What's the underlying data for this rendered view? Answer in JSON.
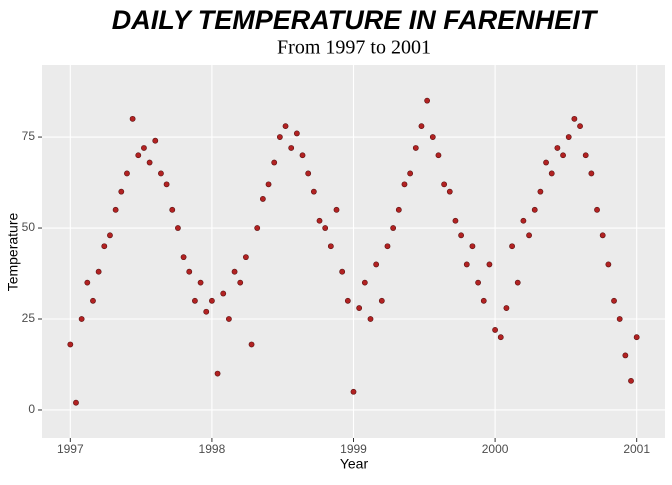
{
  "chart_data": {
    "type": "scatter",
    "title": "DAILY TEMPERATURE IN FARENHEIT",
    "subtitle": "From 1997 to 2001",
    "x_label": "Year",
    "y_label": "Temperature",
    "series": [
      {
        "color": "#b22222",
        "x": [
          1997.0,
          1997.04,
          1997.08,
          1997.12,
          1997.16,
          1997.2,
          1997.24,
          1997.28,
          1997.32,
          1997.36,
          1997.4,
          1997.44,
          1997.48,
          1997.52,
          1997.56,
          1997.6,
          1997.64,
          1997.68,
          1997.72,
          1997.76,
          1997.8,
          1997.84,
          1997.88,
          1997.92,
          1997.96,
          1998.0,
          1998.04,
          1998.08,
          1998.12,
          1998.16,
          1998.2,
          1998.24,
          1998.28,
          1998.32,
          1998.36,
          1998.4,
          1998.44,
          1998.48,
          1998.52,
          1998.56,
          1998.6,
          1998.64,
          1998.68,
          1998.72,
          1998.76,
          1998.8,
          1998.84,
          1998.88,
          1998.92,
          1998.96,
          1999.0,
          1999.04,
          1999.08,
          1999.12,
          1999.16,
          1999.2,
          1999.24,
          1999.28,
          1999.32,
          1999.36,
          1999.4,
          1999.44,
          1999.48,
          1999.52,
          1999.56,
          1999.6,
          1999.64,
          1999.68,
          1999.72,
          1999.76,
          1999.8,
          1999.84,
          1999.88,
          1999.92,
          1999.96,
          2000.0,
          2000.04,
          2000.08,
          2000.12,
          2000.16,
          2000.2,
          2000.24,
          2000.28,
          2000.32,
          2000.36,
          2000.4,
          2000.44,
          2000.48,
          2000.52,
          2000.56,
          2000.6,
          2000.64,
          2000.68,
          2000.72,
          2000.76,
          2000.8,
          2000.84,
          2000.88,
          2000.92,
          2000.96,
          2001.0
        ],
        "values": [
          18,
          2,
          25,
          35,
          30,
          38,
          45,
          48,
          55,
          60,
          65,
          80,
          70,
          72,
          68,
          74,
          65,
          62,
          55,
          50,
          42,
          38,
          30,
          35,
          27,
          30,
          10,
          32,
          25,
          38,
          35,
          42,
          18,
          50,
          58,
          62,
          68,
          75,
          78,
          72,
          76,
          70,
          65,
          60,
          52,
          50,
          45,
          55,
          38,
          30,
          5,
          28,
          35,
          25,
          40,
          30,
          45,
          50,
          55,
          62,
          65,
          72,
          78,
          85,
          75,
          70,
          62,
          60,
          52,
          48,
          40,
          45,
          35,
          30,
          40,
          22,
          20,
          28,
          45,
          35,
          52,
          48,
          55,
          60,
          68,
          65,
          72,
          70,
          75,
          80,
          78,
          70,
          65,
          55,
          48,
          40,
          30,
          25,
          15,
          8,
          20
        ]
      }
    ],
    "xlim": [
      1996.8,
      2001.2
    ],
    "xticks": [
      1997,
      1998,
      1999,
      2000,
      2001
    ],
    "ylim": [
      -7.7,
      94.8
    ],
    "yticks": [
      0,
      25,
      50,
      75
    ],
    "grid": true
  }
}
